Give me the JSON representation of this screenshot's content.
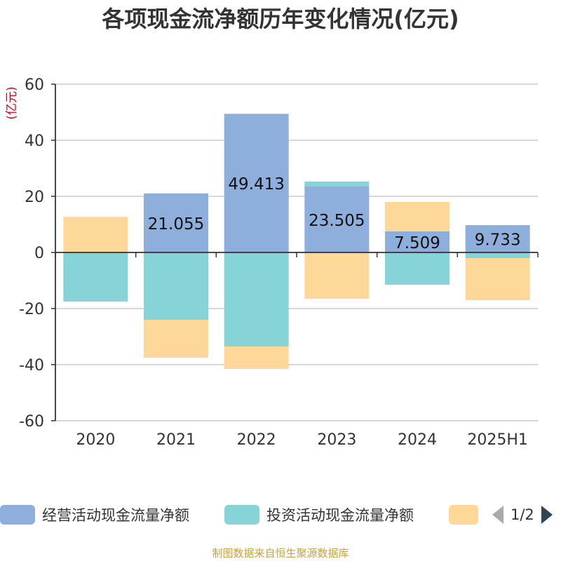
{
  "title": "各项现金流净额历年变化情况(亿元)",
  "source": "制图数据来自恒生聚源数据库",
  "colors": {
    "operating": "#8eaedb",
    "investing": "#86d4d7",
    "financing": "#fdd899",
    "grid": "#cccccc",
    "axis": "#333333",
    "unit": "#d9001b"
  },
  "pager": {
    "text": "1/2",
    "prev_icon": "triangle-left-icon",
    "next_icon": "triangle-right-icon"
  },
  "chart_data": {
    "type": "bar",
    "stacked": true,
    "categories": [
      "2020",
      "2021",
      "2022",
      "2023",
      "2024",
      "2025H1"
    ],
    "ylabel": "(亿元)",
    "ylim": [
      -60,
      60
    ],
    "yticks": [
      -60,
      -40,
      -20,
      0,
      20,
      40,
      60
    ],
    "grid": true,
    "legend_position": "bottom",
    "series": [
      {
        "name": "经营活动现金流量净额",
        "values": [
          0.2,
          21.055,
          49.413,
          23.505,
          7.509,
          9.733
        ],
        "labels": [
          "",
          "21.055",
          "49.413",
          "23.505",
          "7.509",
          "9.733"
        ]
      },
      {
        "name": "投资活动现金流量净额",
        "values": [
          -17.5,
          -24.0,
          -33.5,
          1.8,
          -11.5,
          -2.0
        ],
        "labels": [
          "",
          "",
          "",
          "",
          "",
          ""
        ]
      },
      {
        "name": "",
        "values": [
          12.5,
          -13.5,
          -8.0,
          -16.5,
          10.5,
          -15.0
        ],
        "labels": [
          "",
          "",
          "",
          "",
          "",
          ""
        ]
      }
    ]
  }
}
